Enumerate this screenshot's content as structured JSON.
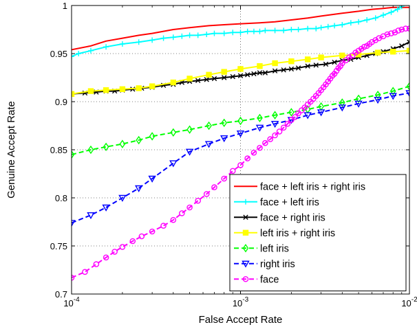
{
  "chart_data": {
    "type": "line",
    "xlabel": "False Accept Rate",
    "ylabel": "Genuine Accept Rate",
    "x_scale": "log",
    "xlim": [
      0.0001,
      0.01
    ],
    "ylim": [
      0.7,
      1.0
    ],
    "x_ticks": [
      {
        "value": 0.0001,
        "base": "10",
        "exp": "-4"
      },
      {
        "value": 0.001,
        "base": "10",
        "exp": "-3"
      },
      {
        "value": 0.01,
        "base": "10",
        "exp": "-2"
      }
    ],
    "y_ticks": [
      {
        "value": 0.7,
        "label": "0.7"
      },
      {
        "value": 0.75,
        "label": "0.75"
      },
      {
        "value": 0.8,
        "label": "0.8"
      },
      {
        "value": 0.85,
        "label": "0.85"
      },
      {
        "value": 0.9,
        "label": "0.9"
      },
      {
        "value": 0.95,
        "label": "0.95"
      },
      {
        "value": 1.0,
        "label": "1"
      }
    ],
    "grid": true,
    "legend_position": "bottom-right",
    "series": [
      {
        "name": "face + left iris + right iris",
        "color": "#ff0000",
        "dash": "solid",
        "marker": "none",
        "x": [
          0.0001,
          0.00013,
          0.00016,
          0.0002,
          0.00025,
          0.0003,
          0.0004,
          0.0005,
          0.00065,
          0.0008,
          0.001,
          0.0013,
          0.0016,
          0.002,
          0.0025,
          0.003,
          0.004,
          0.005,
          0.006,
          0.007,
          0.008,
          0.009,
          0.01
        ],
        "y": [
          0.954,
          0.958,
          0.963,
          0.966,
          0.969,
          0.971,
          0.975,
          0.977,
          0.979,
          0.98,
          0.981,
          0.982,
          0.983,
          0.985,
          0.987,
          0.989,
          0.992,
          0.994,
          0.996,
          0.997,
          0.998,
          0.998,
          0.998
        ]
      },
      {
        "name": "face + left iris",
        "color": "#00ffff",
        "dash": "solid",
        "marker": "plus",
        "x": [
          0.0001,
          0.00011,
          0.00013,
          0.00016,
          0.0002,
          0.00025,
          0.0003,
          0.00035,
          0.0004,
          0.00045,
          0.0005,
          0.00056,
          0.00063,
          0.0007,
          0.0008,
          0.0009,
          0.001,
          0.0011,
          0.0012,
          0.0013,
          0.0014,
          0.0016,
          0.0018,
          0.002,
          0.0022,
          0.0025,
          0.0028,
          0.003,
          0.0033,
          0.0036,
          0.004,
          0.0045,
          0.005,
          0.0056,
          0.0063,
          0.007,
          0.0078,
          0.0085,
          0.009
        ],
        "y": [
          0.947,
          0.95,
          0.953,
          0.957,
          0.96,
          0.962,
          0.964,
          0.966,
          0.967,
          0.968,
          0.969,
          0.969,
          0.97,
          0.971,
          0.971,
          0.972,
          0.972,
          0.973,
          0.973,
          0.973,
          0.974,
          0.974,
          0.974,
          0.975,
          0.975,
          0.976,
          0.976,
          0.977,
          0.978,
          0.979,
          0.98,
          0.982,
          0.983,
          0.985,
          0.987,
          0.99,
          0.993,
          0.996,
          0.999
        ]
      },
      {
        "name": "face + right iris",
        "color": "#000000",
        "dash": "solid",
        "marker": "x",
        "x": [
          0.0001,
          0.00012,
          0.00014,
          0.00016,
          0.00018,
          0.0002,
          0.00023,
          0.00026,
          0.0003,
          0.00035,
          0.0004,
          0.00045,
          0.0005,
          0.00056,
          0.00063,
          0.0007,
          0.0008,
          0.0009,
          0.001,
          0.0011,
          0.0012,
          0.0013,
          0.0014,
          0.0016,
          0.0018,
          0.002,
          0.0022,
          0.0025,
          0.0028,
          0.0032,
          0.0036,
          0.004,
          0.0045,
          0.005,
          0.0056,
          0.0063,
          0.007,
          0.008,
          0.009,
          0.01
        ],
        "y": [
          0.908,
          0.909,
          0.91,
          0.911,
          0.911,
          0.912,
          0.913,
          0.914,
          0.915,
          0.917,
          0.918,
          0.92,
          0.921,
          0.922,
          0.923,
          0.924,
          0.925,
          0.926,
          0.927,
          0.928,
          0.929,
          0.93,
          0.93,
          0.932,
          0.933,
          0.934,
          0.935,
          0.937,
          0.938,
          0.939,
          0.941,
          0.943,
          0.944,
          0.946,
          0.948,
          0.95,
          0.952,
          0.955,
          0.958,
          0.962
        ]
      },
      {
        "name": "left iris + right iris",
        "color": "#ffff00",
        "dash": "solid",
        "marker": "square",
        "x": [
          0.0001,
          0.00013,
          0.00016,
          0.0002,
          0.00025,
          0.0003,
          0.0004,
          0.0005,
          0.00065,
          0.0008,
          0.001,
          0.0013,
          0.0016,
          0.002,
          0.0025,
          0.003,
          0.004,
          0.005,
          0.0065,
          0.008,
          0.01
        ],
        "y": [
          0.908,
          0.911,
          0.912,
          0.913,
          0.914,
          0.916,
          0.92,
          0.924,
          0.928,
          0.931,
          0.934,
          0.937,
          0.94,
          0.942,
          0.944,
          0.946,
          0.948,
          0.949,
          0.951,
          0.952,
          0.953
        ]
      },
      {
        "name": "left iris",
        "color": "#00ff00",
        "dash": "dashed",
        "marker": "diamond",
        "x": [
          0.0001,
          0.00013,
          0.00016,
          0.0002,
          0.00025,
          0.0003,
          0.0004,
          0.0005,
          0.00065,
          0.0008,
          0.001,
          0.0013,
          0.0016,
          0.002,
          0.0025,
          0.003,
          0.004,
          0.005,
          0.0065,
          0.008,
          0.01
        ],
        "y": [
          0.845,
          0.85,
          0.853,
          0.856,
          0.86,
          0.864,
          0.868,
          0.871,
          0.875,
          0.878,
          0.88,
          0.883,
          0.886,
          0.889,
          0.892,
          0.895,
          0.899,
          0.903,
          0.907,
          0.911,
          0.916
        ]
      },
      {
        "name": "right iris",
        "color": "#0000ff",
        "dash": "dashed",
        "marker": "triangle",
        "x": [
          0.0001,
          0.00013,
          0.00016,
          0.0002,
          0.00025,
          0.0003,
          0.0004,
          0.0005,
          0.00065,
          0.0008,
          0.001,
          0.0013,
          0.0016,
          0.002,
          0.0025,
          0.003,
          0.004,
          0.005,
          0.0065,
          0.008,
          0.01
        ],
        "y": [
          0.774,
          0.782,
          0.79,
          0.8,
          0.81,
          0.82,
          0.836,
          0.848,
          0.856,
          0.862,
          0.867,
          0.873,
          0.877,
          0.881,
          0.886,
          0.889,
          0.894,
          0.898,
          0.902,
          0.906,
          0.909
        ]
      },
      {
        "name": "face",
        "color": "#ff00ff",
        "dash": "dashed",
        "marker": "circle",
        "x": [
          0.0001,
          0.00012,
          0.00014,
          0.00016,
          0.00018,
          0.0002,
          0.00023,
          0.00026,
          0.0003,
          0.00035,
          0.0004,
          0.00045,
          0.0005,
          0.00056,
          0.00063,
          0.0007,
          0.0008,
          0.0009,
          0.001,
          0.0011,
          0.0012,
          0.0013,
          0.0014,
          0.0015,
          0.0016,
          0.0017,
          0.0018,
          0.0019,
          0.002,
          0.0021,
          0.0022,
          0.0023,
          0.0024,
          0.0025,
          0.0026,
          0.0027,
          0.0028,
          0.0029,
          0.003,
          0.0031,
          0.0032,
          0.0033,
          0.0034,
          0.0035,
          0.0036,
          0.0037,
          0.0038,
          0.0039,
          0.004,
          0.0042,
          0.0044,
          0.0046,
          0.0048,
          0.005,
          0.0052,
          0.0054,
          0.0056,
          0.0058,
          0.006,
          0.0063,
          0.0066,
          0.007,
          0.0074,
          0.0078,
          0.0082,
          0.0086,
          0.009,
          0.0095,
          0.01
        ],
        "y": [
          0.717,
          0.723,
          0.731,
          0.738,
          0.744,
          0.749,
          0.755,
          0.76,
          0.765,
          0.771,
          0.777,
          0.784,
          0.79,
          0.797,
          0.804,
          0.811,
          0.82,
          0.828,
          0.834,
          0.841,
          0.847,
          0.852,
          0.857,
          0.861,
          0.865,
          0.869,
          0.873,
          0.877,
          0.881,
          0.884,
          0.888,
          0.891,
          0.894,
          0.897,
          0.9,
          0.903,
          0.906,
          0.909,
          0.912,
          0.915,
          0.918,
          0.921,
          0.924,
          0.927,
          0.929,
          0.932,
          0.935,
          0.937,
          0.94,
          0.943,
          0.946,
          0.948,
          0.951,
          0.953,
          0.955,
          0.957,
          0.958,
          0.96,
          0.962,
          0.964,
          0.966,
          0.968,
          0.97,
          0.971,
          0.972,
          0.974,
          0.975,
          0.976,
          0.976
        ]
      }
    ]
  }
}
